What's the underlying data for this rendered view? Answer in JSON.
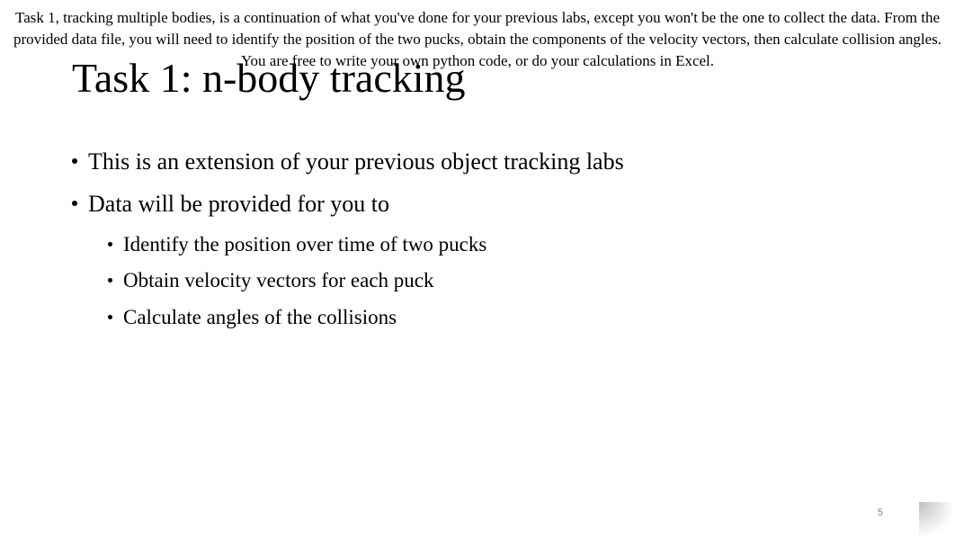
{
  "caption": "Task 1, tracking multiple bodies, is a continuation of what you've done for your previous labs, except you won't be the one to collect the data. From the provided data file, you will need to identify the position of the two pucks, obtain the components of the velocity vectors, then calculate collision angles. You are free to write your own python code, or do your calculations in Excel.",
  "title": "Task 1: n-body tracking",
  "bullets": {
    "item1": "This is an extension of your previous object tracking labs",
    "item2": "Data will be provided for you to",
    "sub1": "Identify the position over time of two pucks",
    "sub2": "Obtain velocity vectors for each puck",
    "sub3": "Calculate angles of the collisions"
  },
  "pageNumber": "5",
  "colors": {
    "text": "#000000",
    "pageNum": "#808080",
    "background": "#ffffff"
  },
  "typography": {
    "titleSize": 46,
    "bulletL1Size": 26,
    "bulletL2Size": 23,
    "captionSize": 17,
    "pageNumSize": 11
  }
}
